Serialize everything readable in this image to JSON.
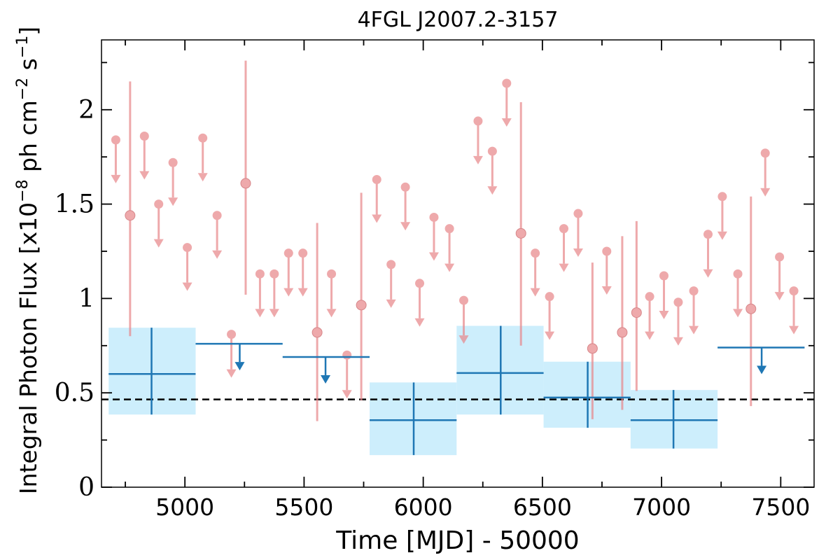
{
  "chart_data": {
    "type": "scatter",
    "title": "4FGL J2007.2-3157",
    "xlabel": "Time [MJD] - 50000",
    "ylabel": "Integral Photon Flux [x10^-8 ph cm^-2 s^-1]",
    "ylabel_parts": {
      "pre": "Integral Photon Flux [x10",
      "exp1": "−8",
      "mid": " ph cm",
      "exp2": "−2",
      "mid2": " s",
      "exp3": "−1",
      "post": "]"
    },
    "xlim": [
      4650,
      7640
    ],
    "ylim": [
      0,
      2.37
    ],
    "xticks": [
      5000,
      5500,
      6000,
      6500,
      7000,
      7500
    ],
    "xtick_labels": [
      "5000",
      "5500",
      "6000",
      "6500",
      "7000",
      "7500"
    ],
    "yticks": [
      0,
      0.5,
      1,
      1.5,
      2
    ],
    "ytick_labels": [
      "0",
      "0.5",
      "1",
      "1.5",
      "2"
    ],
    "reference_line": {
      "y": 0.465,
      "style": "dashed",
      "color": "#000000"
    },
    "colors": {
      "short_bins": "#e8888c",
      "long_bins": "#1f77b4",
      "long_band": "#cdeefc"
    },
    "series": [
      {
        "role": "short-bin-upper-limits",
        "points": [
          {
            "x": 4710,
            "y": 1.84
          },
          {
            "x": 4830,
            "y": 1.86
          },
          {
            "x": 4890,
            "y": 1.5
          },
          {
            "x": 4950,
            "y": 1.72
          },
          {
            "x": 5010,
            "y": 1.27
          },
          {
            "x": 5075,
            "y": 1.85
          },
          {
            "x": 5135,
            "y": 1.44
          },
          {
            "x": 5195,
            "y": 0.81
          },
          {
            "x": 5315,
            "y": 1.13
          },
          {
            "x": 5375,
            "y": 1.13
          },
          {
            "x": 5435,
            "y": 1.24
          },
          {
            "x": 5495,
            "y": 1.24
          },
          {
            "x": 5615,
            "y": 1.13
          },
          {
            "x": 5680,
            "y": 0.7
          },
          {
            "x": 5805,
            "y": 1.63
          },
          {
            "x": 5865,
            "y": 1.18
          },
          {
            "x": 5925,
            "y": 1.59
          },
          {
            "x": 5985,
            "y": 1.08
          },
          {
            "x": 6045,
            "y": 1.43
          },
          {
            "x": 6110,
            "y": 1.37
          },
          {
            "x": 6170,
            "y": 0.99
          },
          {
            "x": 6230,
            "y": 1.94
          },
          {
            "x": 6290,
            "y": 1.78
          },
          {
            "x": 6350,
            "y": 2.14
          },
          {
            "x": 6470,
            "y": 1.24
          },
          {
            "x": 6530,
            "y": 1.01
          },
          {
            "x": 6590,
            "y": 1.37
          },
          {
            "x": 6650,
            "y": 1.45
          },
          {
            "x": 6770,
            "y": 1.25
          },
          {
            "x": 6950,
            "y": 1.01
          },
          {
            "x": 7010,
            "y": 1.12
          },
          {
            "x": 7070,
            "y": 0.98
          },
          {
            "x": 7135,
            "y": 1.04
          },
          {
            "x": 7195,
            "y": 1.34
          },
          {
            "x": 7255,
            "y": 1.54
          },
          {
            "x": 7320,
            "y": 1.13
          },
          {
            "x": 7435,
            "y": 1.77
          },
          {
            "x": 7495,
            "y": 1.22
          },
          {
            "x": 7555,
            "y": 1.04
          }
        ]
      },
      {
        "role": "short-bin-detections",
        "points": [
          {
            "x": 4770,
            "y": 1.44,
            "ylo": 0.8,
            "yhi": 2.15
          },
          {
            "x": 5255,
            "y": 1.61,
            "ylo": 1.02,
            "yhi": 2.26
          },
          {
            "x": 5555,
            "y": 0.82,
            "ylo": 0.35,
            "yhi": 1.4
          },
          {
            "x": 5740,
            "y": 0.965,
            "ylo": 0.46,
            "yhi": 1.56
          },
          {
            "x": 6410,
            "y": 1.345,
            "ylo": 0.75,
            "yhi": 2.04
          },
          {
            "x": 6710,
            "y": 0.735,
            "ylo": 0.36,
            "yhi": 1.19
          },
          {
            "x": 6835,
            "y": 0.82,
            "ylo": 0.41,
            "yhi": 1.33
          },
          {
            "x": 6895,
            "y": 0.925,
            "ylo": 0.51,
            "yhi": 1.41
          },
          {
            "x": 7375,
            "y": 0.945,
            "ylo": 0.43,
            "yhi": 1.54
          }
        ]
      },
      {
        "role": "long-bin-detections",
        "points": [
          {
            "x0": 4680,
            "x1": 5045,
            "xc": 4860,
            "y": 0.6,
            "ylo": 0.385,
            "yhi": 0.845
          },
          {
            "x0": 5775,
            "x1": 6140,
            "xc": 5960,
            "y": 0.355,
            "ylo": 0.17,
            "yhi": 0.555
          },
          {
            "x0": 6140,
            "x1": 6505,
            "xc": 6325,
            "y": 0.605,
            "ylo": 0.385,
            "yhi": 0.855
          },
          {
            "x0": 6505,
            "x1": 6870,
            "xc": 6690,
            "y": 0.475,
            "ylo": 0.315,
            "yhi": 0.665
          },
          {
            "x0": 6870,
            "x1": 7235,
            "xc": 7050,
            "y": 0.355,
            "ylo": 0.205,
            "yhi": 0.515
          }
        ]
      },
      {
        "role": "long-bin-upper-limits",
        "points": [
          {
            "x0": 5045,
            "x1": 5410,
            "xc": 5230,
            "y": 0.76
          },
          {
            "x0": 5410,
            "x1": 5775,
            "xc": 5590,
            "y": 0.69
          },
          {
            "x0": 7235,
            "x1": 7600,
            "xc": 7420,
            "y": 0.74
          }
        ]
      }
    ]
  }
}
